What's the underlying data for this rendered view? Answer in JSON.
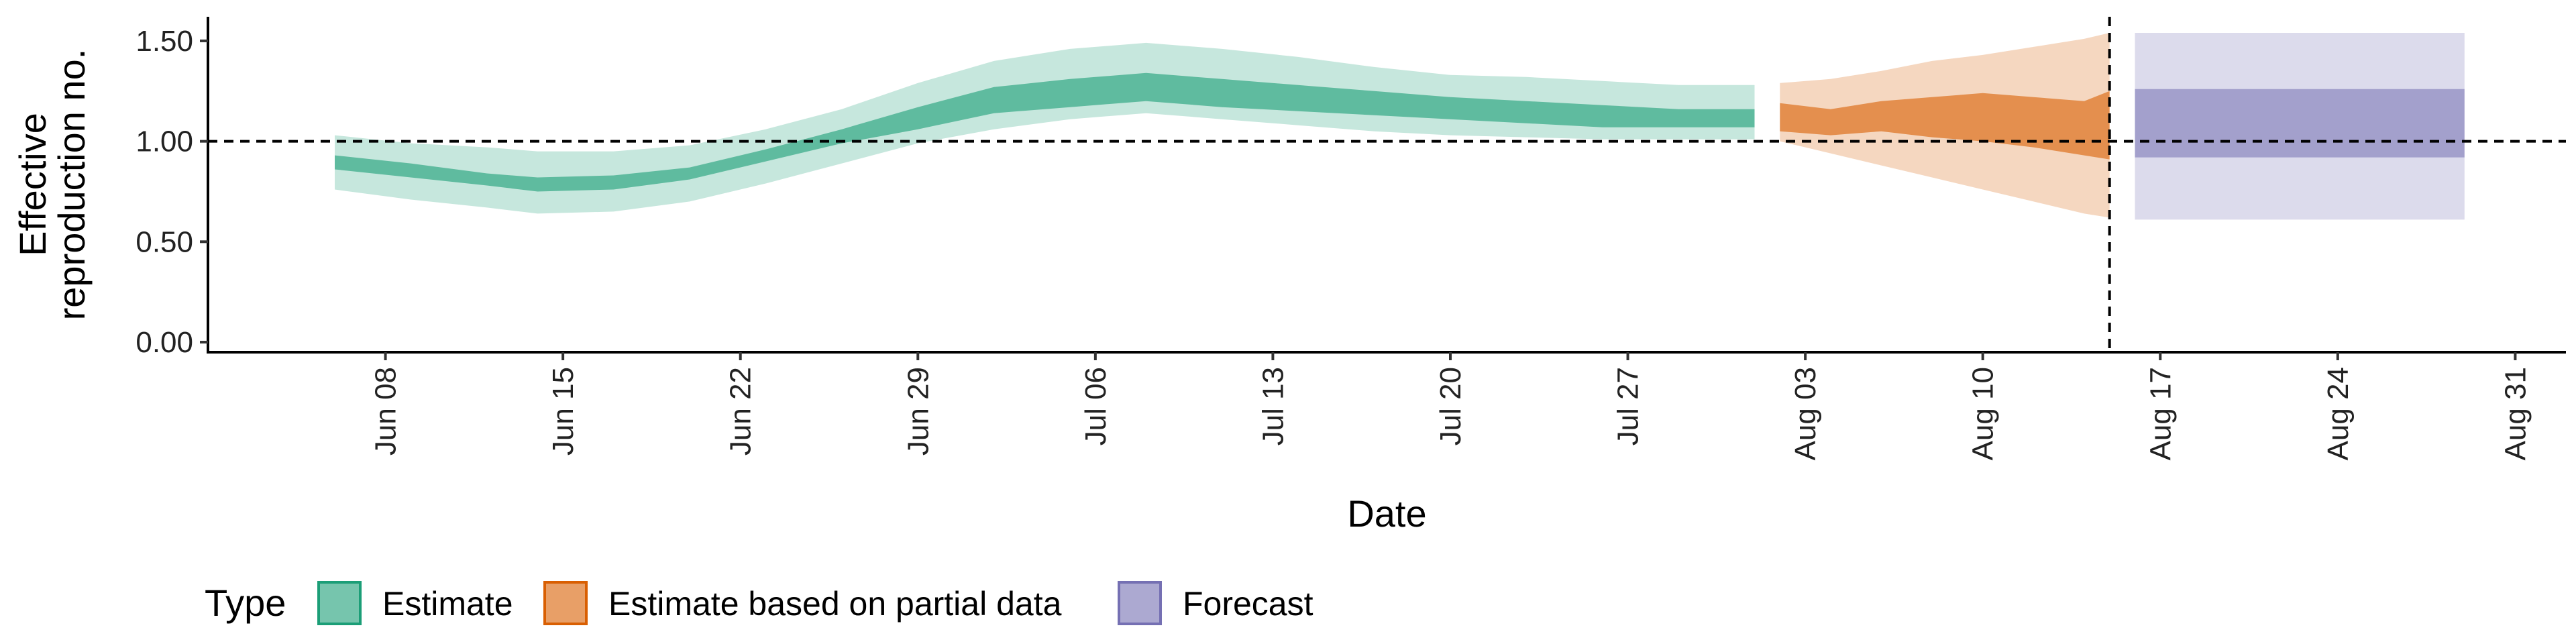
{
  "chart_data": {
    "type": "area",
    "title": "",
    "xlabel": "Date",
    "ylabel_lines": [
      "Effective",
      "reproduction no."
    ],
    "ylim": [
      -0.05,
      1.62
    ],
    "yticks": [
      0.0,
      0.5,
      1.0,
      1.5
    ],
    "ytick_labels": [
      "0.00",
      "0.50",
      "1.00",
      "1.50"
    ],
    "xlim": [
      "2020-06-01",
      "2020-09-02"
    ],
    "xticks": [
      "2020-06-08",
      "2020-06-15",
      "2020-06-22",
      "2020-06-29",
      "2020-07-06",
      "2020-07-13",
      "2020-07-20",
      "2020-07-27",
      "2020-08-03",
      "2020-08-10",
      "2020-08-17",
      "2020-08-24",
      "2020-08-31"
    ],
    "xtick_labels": [
      "Jun 08",
      "Jun 15",
      "Jun 22",
      "Jun 29",
      "Jul 06",
      "Jul 13",
      "Jul 20",
      "Jul 27",
      "Aug 03",
      "Aug 10",
      "Aug 17",
      "Aug 24",
      "Aug 31"
    ],
    "reference_line_y": 1.0,
    "reference_line_x": "2020-08-15",
    "grid": false,
    "legend_position": "bottom",
    "legend_title": "Type",
    "series": [
      {
        "name": "Estimate",
        "color": "#1b9e77",
        "dates": [
          "2020-06-06",
          "2020-06-09",
          "2020-06-12",
          "2020-06-14",
          "2020-06-17",
          "2020-06-20",
          "2020-06-23",
          "2020-06-26",
          "2020-06-29",
          "2020-07-02",
          "2020-07-05",
          "2020-07-08",
          "2020-07-11",
          "2020-07-14",
          "2020-07-17",
          "2020-07-20",
          "2020-07-23",
          "2020-07-26",
          "2020-07-29",
          "2020-08-01"
        ],
        "upper90": [
          1.03,
          0.99,
          0.97,
          0.95,
          0.95,
          0.98,
          1.06,
          1.16,
          1.29,
          1.4,
          1.46,
          1.49,
          1.46,
          1.42,
          1.37,
          1.33,
          1.32,
          1.3,
          1.28,
          1.28
        ],
        "upper50": [
          0.93,
          0.89,
          0.84,
          0.82,
          0.83,
          0.87,
          0.96,
          1.06,
          1.17,
          1.27,
          1.31,
          1.34,
          1.31,
          1.28,
          1.25,
          1.22,
          1.2,
          1.18,
          1.16,
          1.16
        ],
        "lower50": [
          0.86,
          0.82,
          0.78,
          0.75,
          0.76,
          0.81,
          0.9,
          0.99,
          1.06,
          1.14,
          1.17,
          1.2,
          1.17,
          1.15,
          1.13,
          1.11,
          1.09,
          1.07,
          1.07,
          1.07
        ],
        "lower90": [
          0.76,
          0.71,
          0.67,
          0.64,
          0.65,
          0.7,
          0.79,
          0.89,
          0.99,
          1.06,
          1.11,
          1.14,
          1.11,
          1.08,
          1.05,
          1.03,
          1.02,
          1.01,
          1.01,
          1.01
        ]
      },
      {
        "name": "Estimate based on partial data",
        "color": "#d95f02",
        "dates": [
          "2020-08-02",
          "2020-08-04",
          "2020-08-06",
          "2020-08-08",
          "2020-08-10",
          "2020-08-12",
          "2020-08-14",
          "2020-08-15"
        ],
        "upper90": [
          1.29,
          1.31,
          1.35,
          1.4,
          1.43,
          1.47,
          1.51,
          1.54
        ],
        "upper50": [
          1.19,
          1.16,
          1.2,
          1.22,
          1.24,
          1.22,
          1.2,
          1.25
        ],
        "lower50": [
          1.05,
          1.03,
          1.05,
          1.02,
          1.0,
          0.97,
          0.93,
          0.91
        ],
        "lower90": [
          1.0,
          0.94,
          0.88,
          0.82,
          0.76,
          0.7,
          0.64,
          0.62
        ]
      },
      {
        "name": "Forecast",
        "color": "#7570b3",
        "dates": [
          "2020-08-16",
          "2020-08-29"
        ],
        "upper90": [
          1.54,
          1.54
        ],
        "upper50": [
          1.26,
          1.26
        ],
        "lower50": [
          0.92,
          0.92
        ],
        "lower90": [
          0.61,
          0.61
        ]
      }
    ]
  }
}
